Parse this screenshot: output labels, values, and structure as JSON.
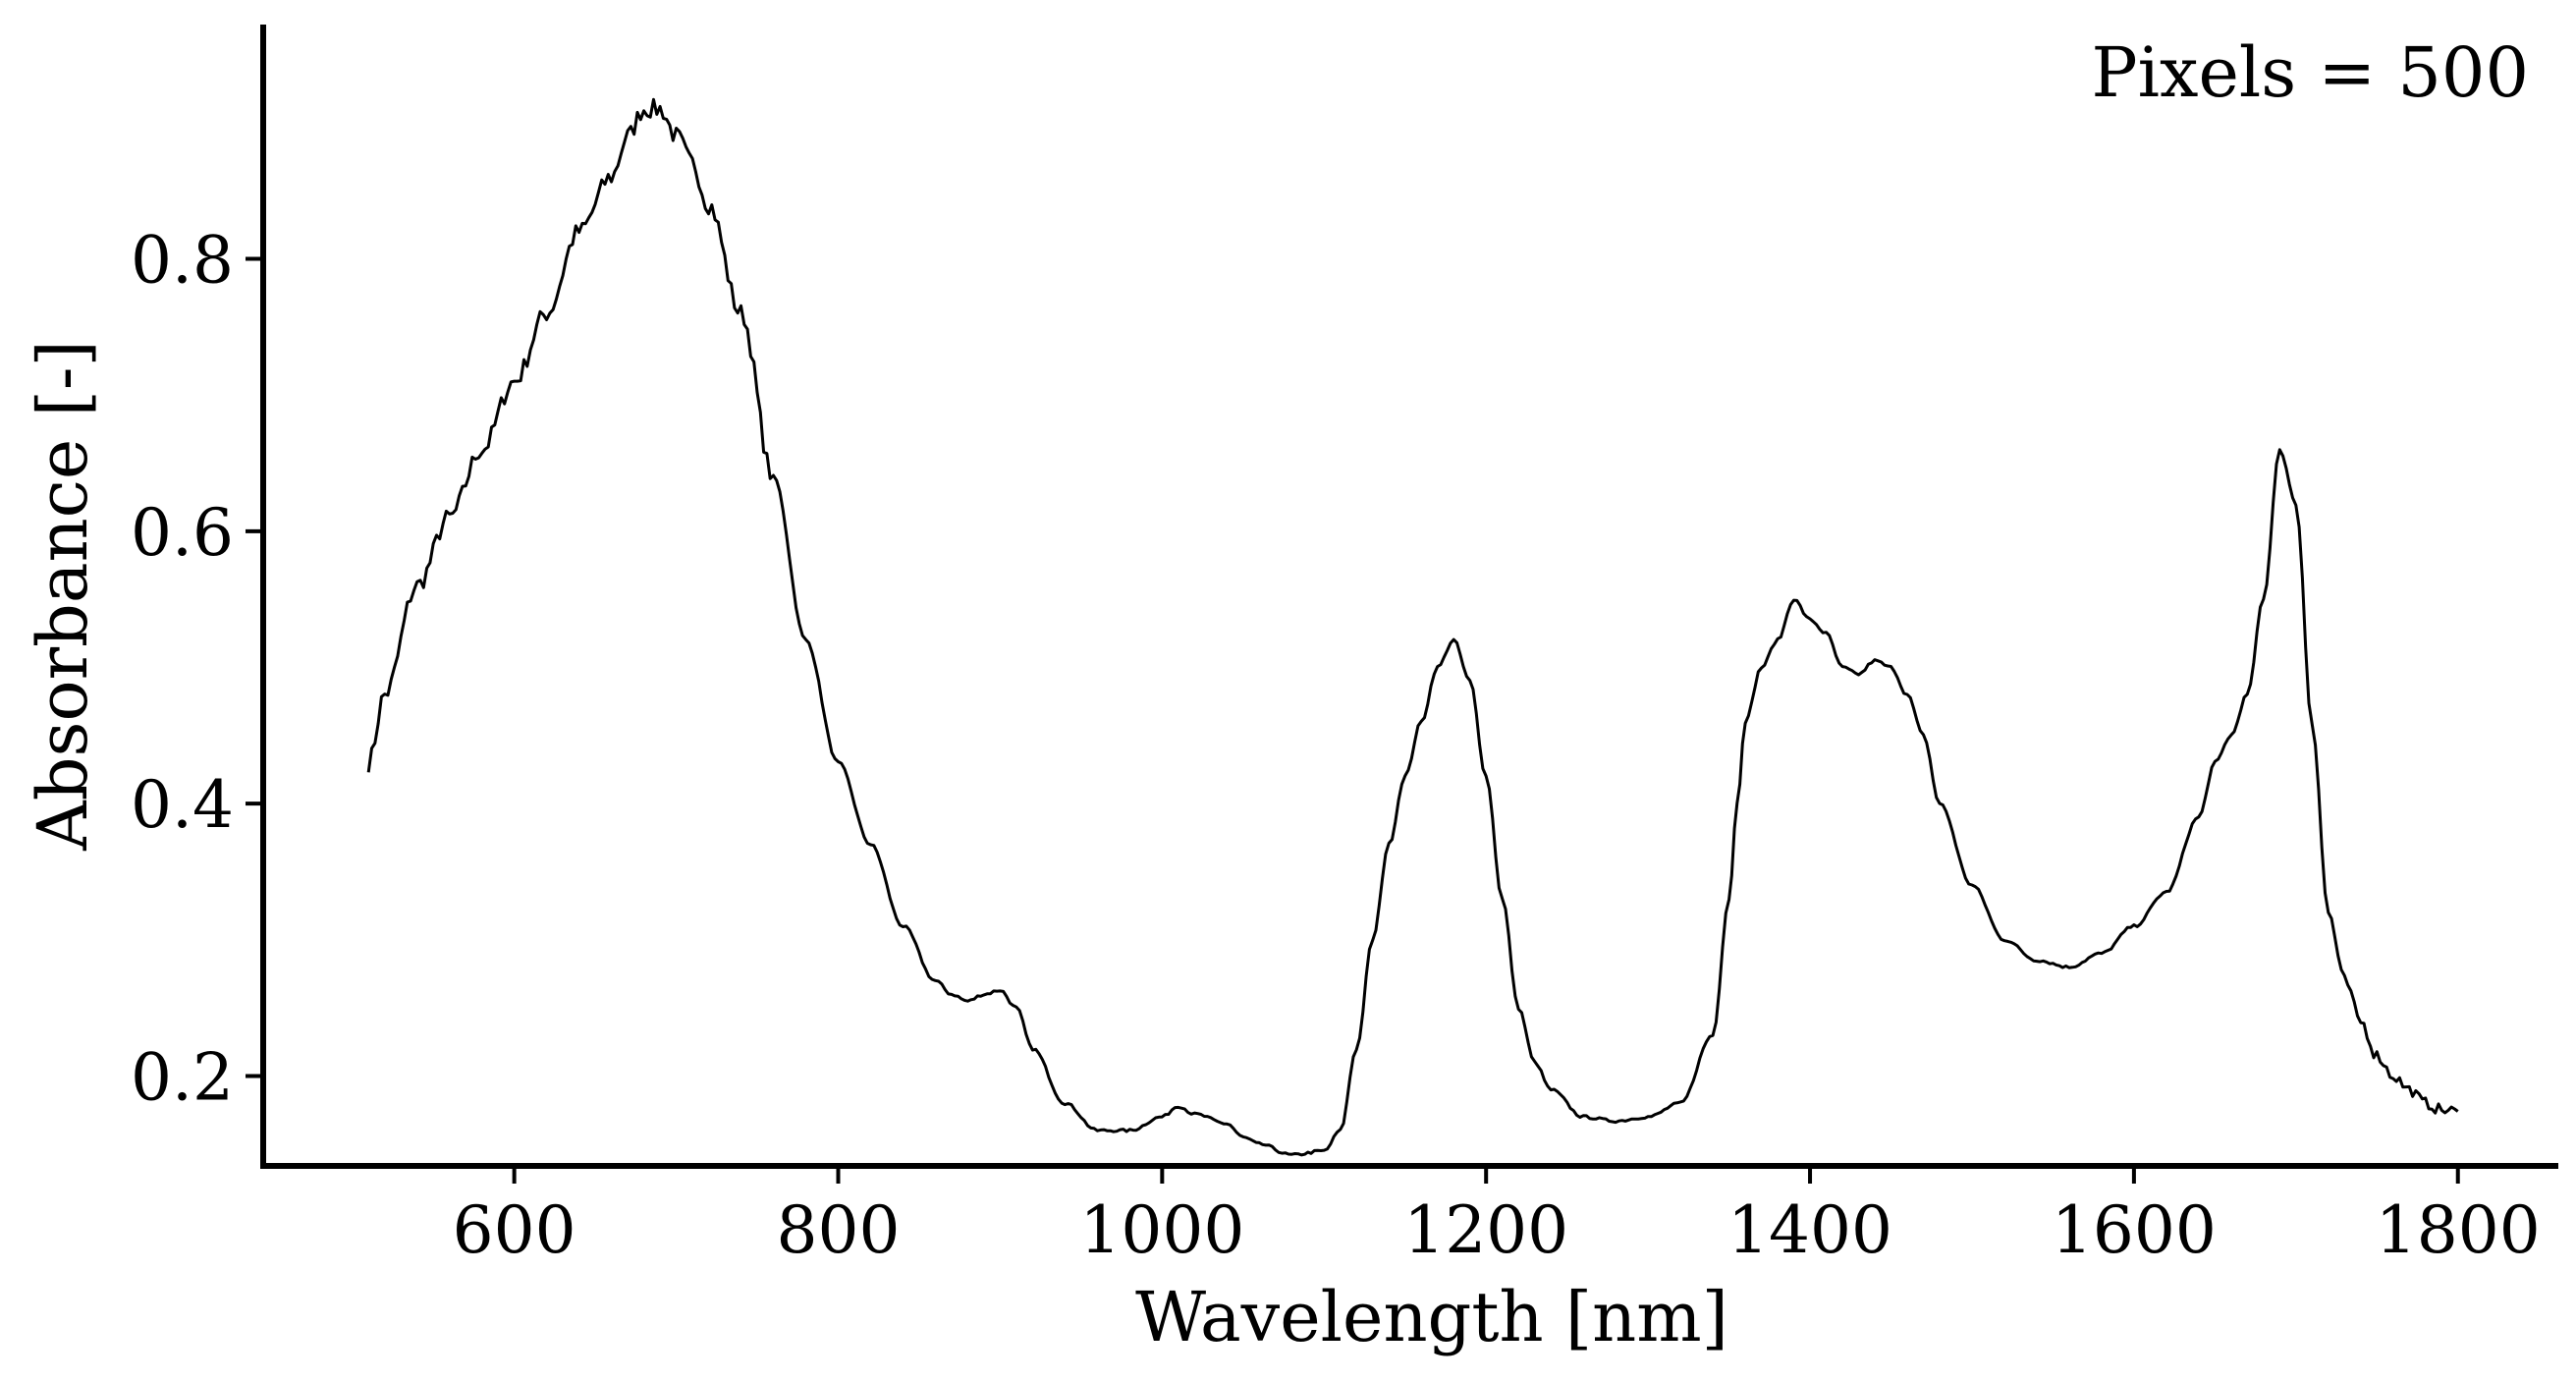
{
  "chart_data": {
    "type": "line",
    "title": "",
    "xlabel": "Wavelength [nm]",
    "ylabel": "Absorbance [-]",
    "xlim": [
      445,
      1862
    ],
    "ylim": [
      0.134,
      0.972
    ],
    "xticks": [
      600,
      800,
      1000,
      1200,
      1400,
      1600,
      1800
    ],
    "xtick_labels": [
      "600",
      "800",
      "1000",
      "1200",
      "1400",
      "1600",
      "1800"
    ],
    "yticks": [
      0.2,
      0.4,
      0.6,
      0.8
    ],
    "ytick_labels": [
      "0.2",
      "0.4",
      "0.6",
      "0.8"
    ],
    "annotation": "Pixels = 500",
    "grid": false,
    "line_color": "#000000",
    "series": [
      {
        "name": "Absorbance",
        "noise": 0.007,
        "x": [
          510,
          520,
          540,
          560,
          580,
          600,
          620,
          640,
          660,
          670,
          680,
          690,
          700,
          710,
          720,
          740,
          760,
          780,
          800,
          820,
          840,
          860,
          870,
          880,
          890,
          900,
          910,
          920,
          940,
          960,
          980,
          1000,
          1010,
          1020,
          1040,
          1050,
          1060,
          1080,
          1100,
          1110,
          1120,
          1130,
          1140,
          1150,
          1160,
          1170,
          1180,
          1190,
          1200,
          1210,
          1220,
          1230,
          1240,
          1260,
          1280,
          1300,
          1320,
          1340,
          1350,
          1355,
          1360,
          1370,
          1380,
          1390,
          1400,
          1410,
          1420,
          1430,
          1440,
          1450,
          1460,
          1470,
          1480,
          1500,
          1520,
          1540,
          1560,
          1580,
          1600,
          1620,
          1640,
          1650,
          1660,
          1670,
          1680,
          1690,
          1700,
          1710,
          1720,
          1730,
          1740,
          1750,
          1760,
          1770,
          1780,
          1790,
          1800
        ],
        "y": [
          0.43,
          0.48,
          0.56,
          0.61,
          0.66,
          0.71,
          0.76,
          0.82,
          0.86,
          0.89,
          0.91,
          0.91,
          0.89,
          0.87,
          0.84,
          0.76,
          0.64,
          0.52,
          0.43,
          0.37,
          0.31,
          0.27,
          0.26,
          0.255,
          0.26,
          0.263,
          0.25,
          0.22,
          0.18,
          0.16,
          0.16,
          0.17,
          0.178,
          0.172,
          0.165,
          0.155,
          0.15,
          0.142,
          0.145,
          0.16,
          0.22,
          0.3,
          0.37,
          0.42,
          0.46,
          0.5,
          0.52,
          0.49,
          0.42,
          0.33,
          0.25,
          0.21,
          0.19,
          0.17,
          0.167,
          0.17,
          0.18,
          0.23,
          0.33,
          0.4,
          0.46,
          0.5,
          0.52,
          0.55,
          0.535,
          0.525,
          0.5,
          0.495,
          0.505,
          0.5,
          0.48,
          0.45,
          0.4,
          0.34,
          0.3,
          0.285,
          0.28,
          0.29,
          0.31,
          0.335,
          0.39,
          0.43,
          0.45,
          0.48,
          0.55,
          0.66,
          0.62,
          0.46,
          0.32,
          0.27,
          0.24,
          0.215,
          0.2,
          0.19,
          0.18,
          0.175,
          0.174
        ]
      }
    ]
  }
}
